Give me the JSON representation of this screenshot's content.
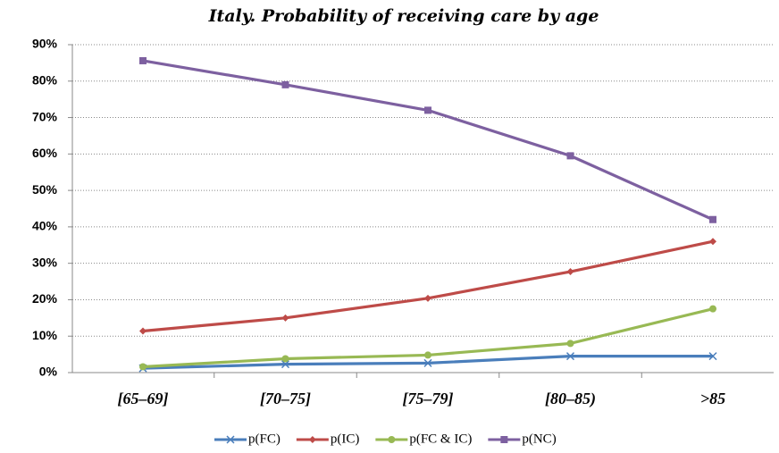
{
  "chart_data": {
    "type": "line",
    "title": "Italy. Probability of receiving care by age",
    "categories": [
      "[65–69]",
      "[70–75]",
      "[75–79]",
      "[80–85)",
      ">85"
    ],
    "series": [
      {
        "name": "p(FC)",
        "color": "#4a7ebb",
        "marker": "x",
        "values": [
          1.2,
          2.3,
          2.6,
          4.5,
          4.5
        ]
      },
      {
        "name": "p(IC)",
        "color": "#be4b48",
        "marker": "diamond",
        "values": [
          11.4,
          15,
          20.4,
          27.7,
          36
        ]
      },
      {
        "name": "p(FC & IC)",
        "color": "#98b954",
        "marker": "circle",
        "values": [
          1.6,
          3.8,
          4.8,
          8,
          17.5
        ]
      },
      {
        "name": "p(NC)",
        "color": "#7d60a0",
        "marker": "square",
        "values": [
          85.6,
          79,
          72,
          59.5,
          42
        ]
      }
    ],
    "ylim": [
      0,
      90
    ],
    "yticks": [
      {
        "value": 0,
        "label": "0%"
      },
      {
        "value": 10,
        "label": "10%"
      },
      {
        "value": 20,
        "label": "20%"
      },
      {
        "value": 30,
        "label": "30%"
      },
      {
        "value": 40,
        "label": "40%"
      },
      {
        "value": 50,
        "label": "50%"
      },
      {
        "value": 60,
        "label": "60%"
      },
      {
        "value": 70,
        "label": "70%"
      },
      {
        "value": 80,
        "label": "80%"
      },
      {
        "value": 90,
        "label": "90%"
      }
    ],
    "grid": true,
    "legend": "bottom"
  }
}
